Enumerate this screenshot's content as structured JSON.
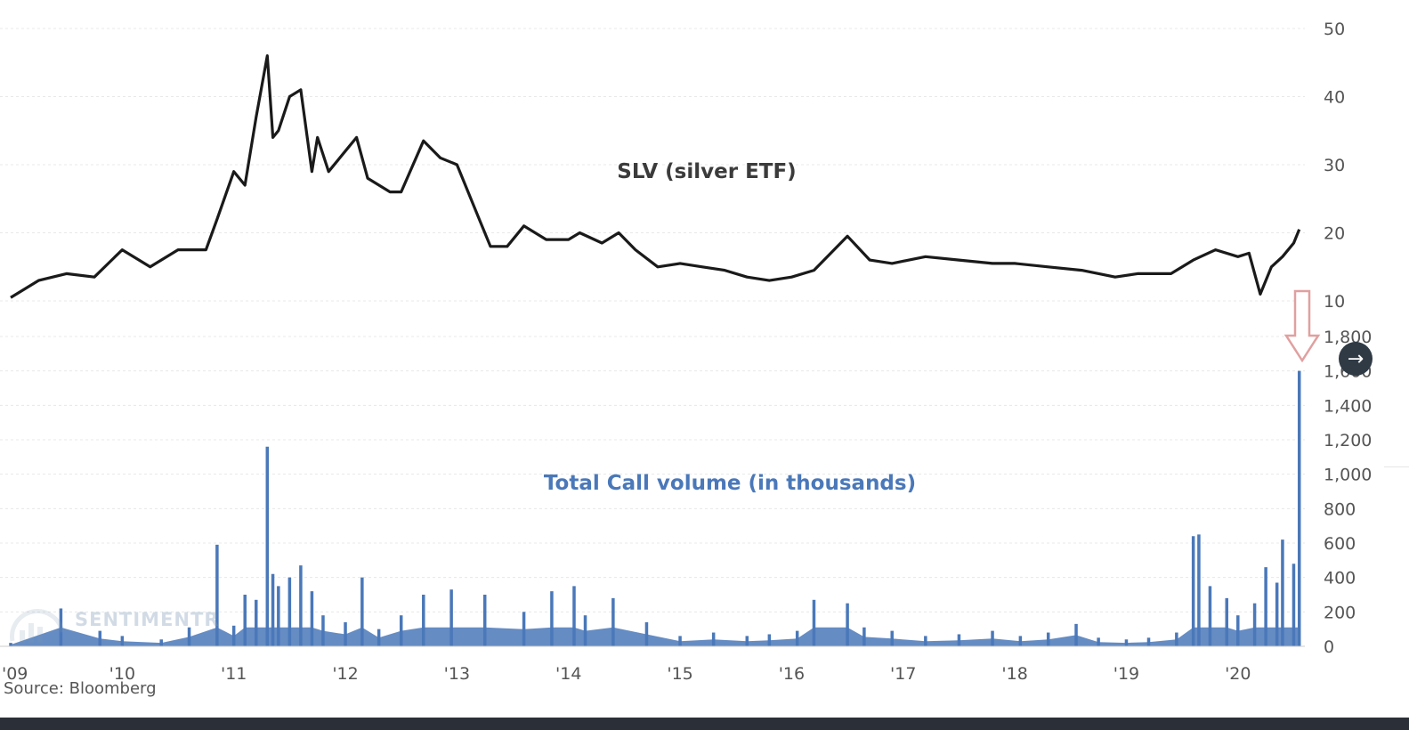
{
  "chart_data": [
    {
      "type": "line",
      "series_name": "SLV (silver ETF)",
      "color": "#1a1a1a",
      "y_ticks": [
        "50",
        "40",
        "30",
        "20",
        "10"
      ],
      "ylim": [
        10,
        50
      ],
      "x": [
        2009.0,
        2009.25,
        2009.5,
        2009.75,
        2010.0,
        2010.25,
        2010.5,
        2010.75,
        2010.85,
        2011.0,
        2011.1,
        2011.2,
        2011.3,
        2011.35,
        2011.4,
        2011.5,
        2011.6,
        2011.7,
        2011.75,
        2011.85,
        2012.0,
        2012.1,
        2012.2,
        2012.4,
        2012.5,
        2012.7,
        2012.85,
        2013.0,
        2013.2,
        2013.3,
        2013.45,
        2013.6,
        2013.8,
        2014.0,
        2014.1,
        2014.3,
        2014.45,
        2014.6,
        2014.8,
        2015.0,
        2015.2,
        2015.4,
        2015.6,
        2015.8,
        2016.0,
        2016.2,
        2016.5,
        2016.7,
        2016.9,
        2017.2,
        2017.5,
        2017.8,
        2018.0,
        2018.3,
        2018.6,
        2018.9,
        2019.1,
        2019.4,
        2019.6,
        2019.8,
        2020.0,
        2020.1,
        2020.2,
        2020.3,
        2020.4,
        2020.5,
        2020.55
      ],
      "values": [
        10.5,
        13,
        14,
        13.5,
        17.5,
        15,
        17.5,
        17.5,
        22,
        29,
        27,
        37,
        46,
        34,
        35,
        40,
        41,
        29,
        34,
        29,
        32,
        34,
        28,
        26,
        26,
        33.5,
        31,
        30,
        22,
        18,
        18,
        21,
        19,
        19,
        20,
        18.5,
        20,
        17.5,
        15,
        15.5,
        15,
        14.5,
        13.5,
        13,
        13.5,
        14.5,
        19.5,
        16,
        15.5,
        16.5,
        16,
        15.5,
        15.5,
        15,
        14.5,
        13.5,
        14,
        14,
        16,
        17.5,
        16.5,
        17,
        11,
        15,
        16.5,
        18.5,
        20.5
      ],
      "xlim": [
        2009.0,
        2020.6
      ]
    },
    {
      "type": "bar",
      "series_name": "Total Call volume (in thousands)",
      "color": "#4a78b9",
      "y_ticks": [
        "1,800",
        "1,600",
        "1,400",
        "1,200",
        "1,000",
        "800",
        "600",
        "400",
        "200",
        "0"
      ],
      "ylim": [
        0,
        1800
      ],
      "x": [
        2009.0,
        2009.45,
        2009.8,
        2010.0,
        2010.35,
        2010.6,
        2010.85,
        2011.0,
        2011.1,
        2011.2,
        2011.3,
        2011.35,
        2011.4,
        2011.5,
        2011.6,
        2011.7,
        2011.8,
        2012.0,
        2012.15,
        2012.3,
        2012.5,
        2012.7,
        2012.95,
        2013.25,
        2013.6,
        2013.85,
        2014.05,
        2014.15,
        2014.4,
        2014.7,
        2015.0,
        2015.3,
        2015.6,
        2015.8,
        2016.05,
        2016.2,
        2016.5,
        2016.65,
        2016.9,
        2017.2,
        2017.5,
        2017.8,
        2018.05,
        2018.3,
        2018.55,
        2018.75,
        2019.0,
        2019.2,
        2019.45,
        2019.6,
        2019.65,
        2019.75,
        2019.9,
        2020.0,
        2020.15,
        2020.25,
        2020.35,
        2020.4,
        2020.5,
        2020.55
      ],
      "values": [
        20,
        220,
        90,
        60,
        40,
        110,
        590,
        120,
        300,
        270,
        1160,
        420,
        350,
        400,
        470,
        320,
        180,
        140,
        400,
        100,
        180,
        300,
        330,
        300,
        200,
        320,
        350,
        180,
        280,
        140,
        60,
        80,
        60,
        70,
        90,
        270,
        250,
        110,
        90,
        60,
        70,
        90,
        60,
        80,
        130,
        50,
        40,
        50,
        80,
        640,
        650,
        350,
        280,
        180,
        250,
        460,
        370,
        620,
        480,
        1600
      ],
      "xlim": [
        2009.0,
        2020.6
      ]
    }
  ],
  "x_tick_labels": [
    "'09",
    "'10",
    "'11",
    "'12",
    "'13",
    "'14",
    "'15",
    "'16",
    "'17",
    "'18",
    "'19",
    "'20"
  ],
  "labels": {
    "slv": "SLV (silver ETF)",
    "call_volume": "Total Call volume (in thousands)",
    "source": "Source: Bloomberg",
    "watermark": "SENTIMENTR"
  },
  "colors": {
    "price_line": "#1a1a1a",
    "volume": "#4a78b9",
    "arrow": "#e0a0a0",
    "grid": "#e8e8e8"
  },
  "icons": {
    "nav_button": "arrow-right-icon"
  }
}
